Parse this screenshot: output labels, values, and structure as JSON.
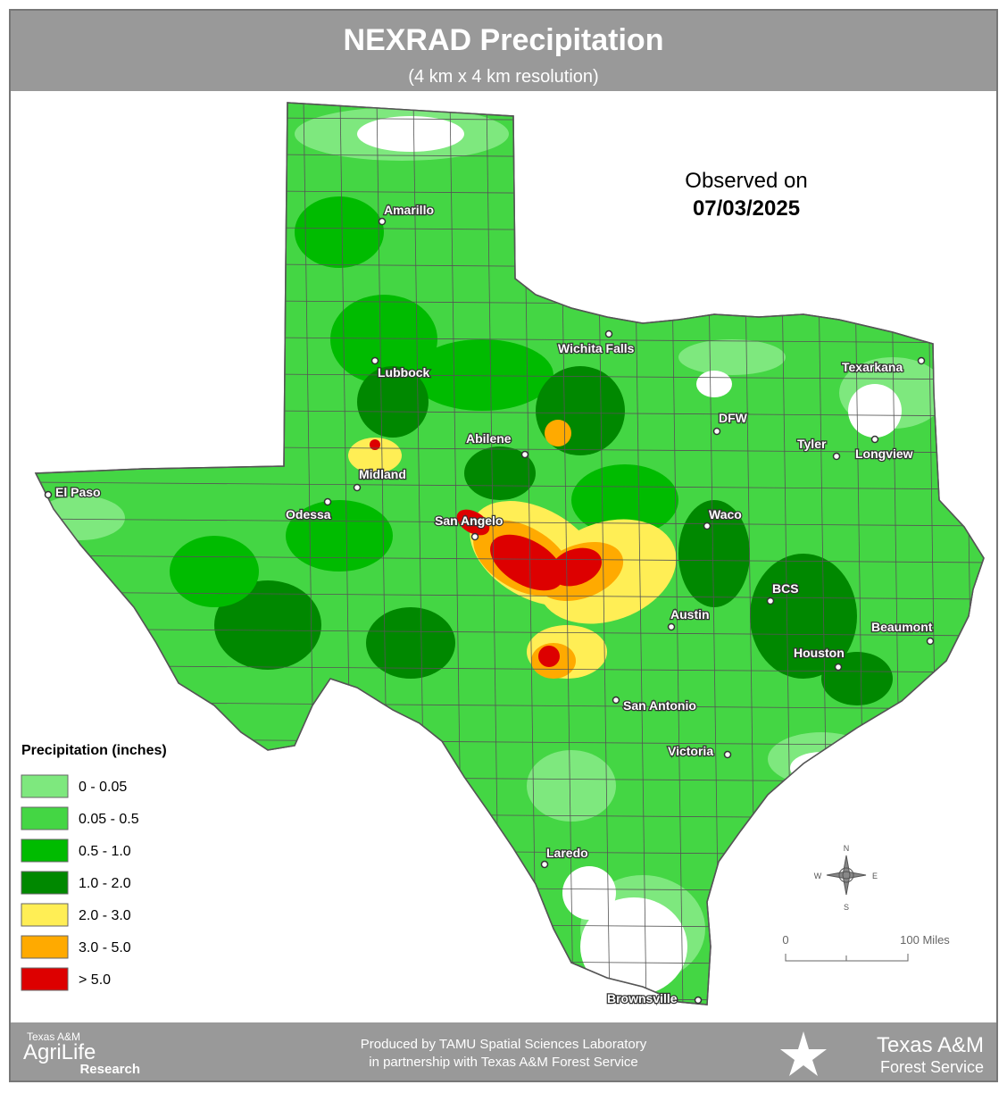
{
  "header": {
    "title": "NEXRAD Precipitation",
    "subtitle": "(4 km x 4 km resolution)"
  },
  "observed": {
    "label": "Observed on",
    "date": "07/03/2025"
  },
  "legend": {
    "title": "Precipitation (inches)",
    "items": [
      {
        "label": "0 - 0.05",
        "color": "#7ee87e"
      },
      {
        "label": "0.05 - 0.5",
        "color": "#44d644"
      },
      {
        "label": "0.5 - 1.0",
        "color": "#00bb00"
      },
      {
        "label": "1.0 - 2.0",
        "color": "#008800"
      },
      {
        "label": "2.0 - 3.0",
        "color": "#ffee55"
      },
      {
        "label": "3.0 - 5.0",
        "color": "#ffaa00"
      },
      {
        "label": "> 5.0",
        "color": "#dd0000"
      }
    ]
  },
  "cities": [
    "Amarillo",
    "Lubbock",
    "Wichita Falls",
    "Texarkana",
    "DFW",
    "Tyler",
    "Longview",
    "Abilene",
    "Midland",
    "El Paso",
    "Odessa",
    "San Angelo",
    "Waco",
    "BCS",
    "Austin",
    "Beaumont",
    "Houston",
    "San Antonio",
    "Victoria",
    "Laredo",
    "Brownsville"
  ],
  "compass": {
    "n": "N",
    "s": "S",
    "e": "E",
    "w": "W"
  },
  "scale": {
    "start": "0",
    "end": "100 Miles"
  },
  "footer": {
    "credit": [
      "Produced by TAMU Spatial Sciences Laboratory",
      "in partnership with Texas A&M Forest Service"
    ],
    "left_logo": [
      "Texas A&M",
      "AgriLife",
      "Research"
    ],
    "right_logo": [
      "Texas A&M",
      "Forest Service"
    ]
  }
}
